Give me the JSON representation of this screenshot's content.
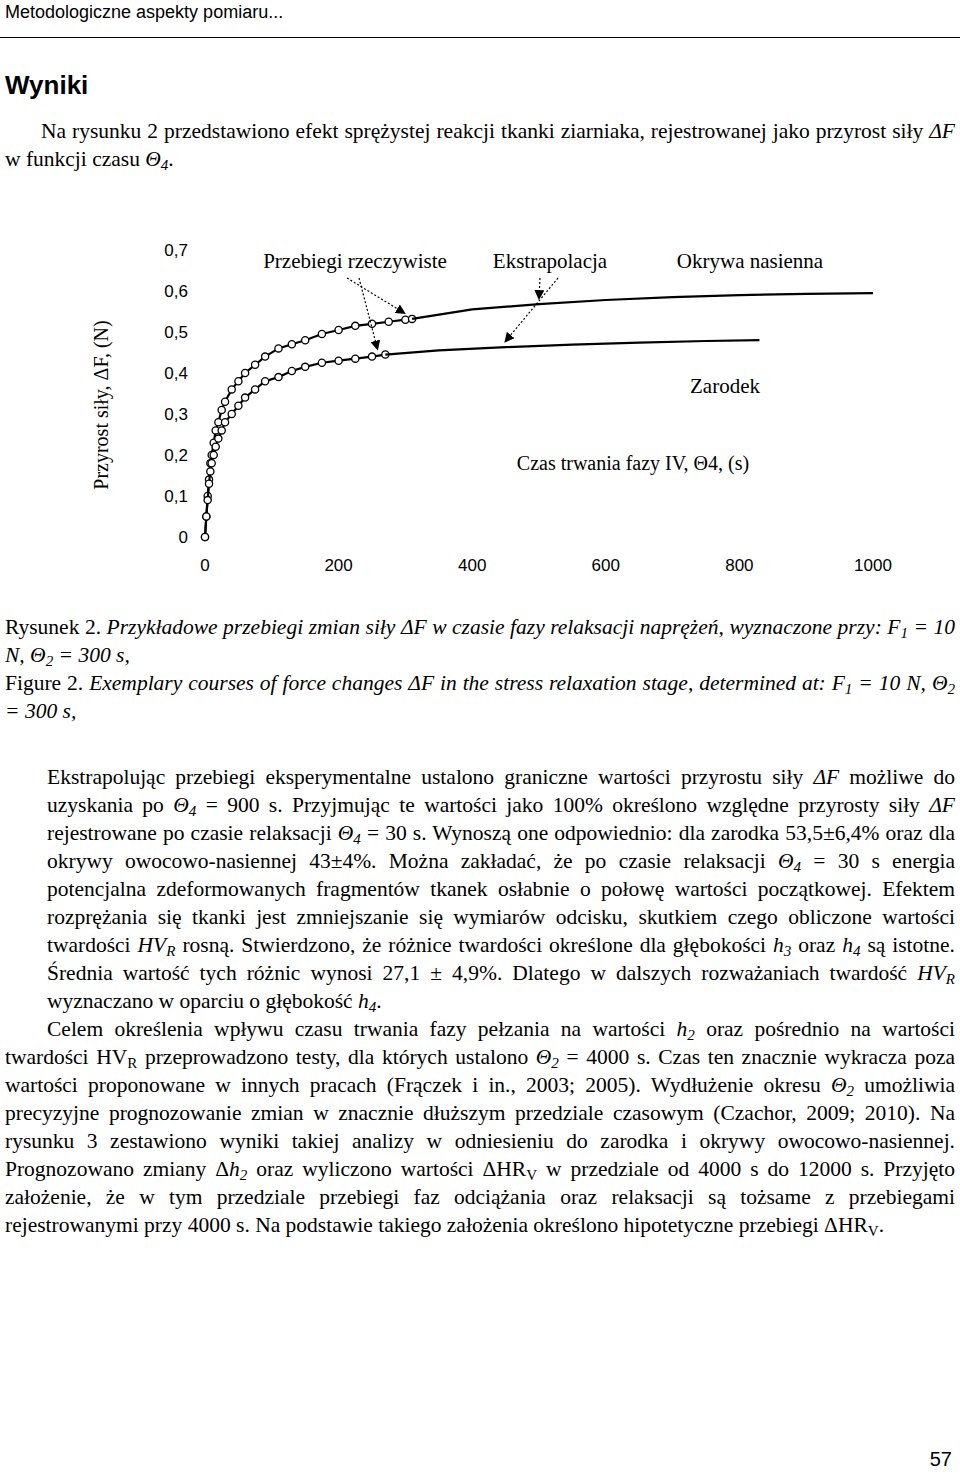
{
  "header": {
    "running_title": "Metodologiczne aspekty pomiaru..."
  },
  "section_title": "Wyniki",
  "intro": [
    "Na rysunku 2 przedstawiono efekt sprężystej reakcji tkanki ziarniaka, rejestrowanej jako przyrost siły ",
    {
      "i": "ΔF"
    },
    " w funkcji czasu ",
    {
      "i": "Θ"
    },
    {
      "is": "4"
    },
    "."
  ],
  "chart_data": {
    "type": "line",
    "x_label": "Czas trwania fazy IV, Θ4, (s)",
    "y_label": "Przyrost siły, ΔF, (N)",
    "annotations": [
      "Przebiegi rzeczywiste",
      "Ekstrapolacja"
    ],
    "xlim": [
      0,
      1000
    ],
    "xticks": [
      0,
      200,
      400,
      600,
      800,
      1000
    ],
    "ylim": [
      0,
      0.7
    ],
    "yticks": [
      0,
      {
        "value": 0.1,
        "label": "0,1"
      },
      {
        "value": 0.2,
        "label": "0,2"
      },
      {
        "value": 0.3,
        "label": "0,3"
      },
      {
        "value": 0.4,
        "label": "0,4"
      },
      {
        "value": 0.5,
        "label": "0,5"
      },
      {
        "value": 0.6,
        "label": "0,6"
      },
      {
        "value": 0.7,
        "label": "0,7"
      }
    ],
    "grid": false,
    "series": [
      {
        "name": "Okrywa nasienna",
        "color": "#000000",
        "marker": "circle",
        "line_style": "solid",
        "x": [
          0,
          2,
          4,
          6,
          8,
          10,
          13,
          16,
          20,
          25,
          30,
          40,
          50,
          60,
          75,
          90,
          110,
          130,
          150,
          175,
          200,
          225,
          250,
          275,
          300,
          310
        ],
        "values": [
          0,
          0.05,
          0.1,
          0.14,
          0.18,
          0.2,
          0.23,
          0.26,
          0.28,
          0.31,
          0.33,
          0.36,
          0.38,
          0.4,
          0.42,
          0.44,
          0.46,
          0.47,
          0.48,
          0.495,
          0.505,
          0.515,
          0.52,
          0.525,
          0.53,
          0.532
        ]
      },
      {
        "color": "#000000",
        "marker": "none",
        "line_style": "solid",
        "x": [
          310,
          400,
          500,
          600,
          700,
          800,
          900,
          1000
        ],
        "values": [
          0.532,
          0.555,
          0.568,
          0.578,
          0.585,
          0.59,
          0.593,
          0.595
        ]
      },
      {
        "name": "Zarodek",
        "color": "#000000",
        "marker": "circle",
        "line_style": "solid",
        "x": [
          0,
          2,
          4,
          6,
          8,
          10,
          13,
          16,
          20,
          25,
          30,
          40,
          50,
          60,
          75,
          90,
          110,
          130,
          150,
          175,
          200,
          225,
          250,
          270
        ],
        "values": [
          0,
          0.05,
          0.09,
          0.13,
          0.16,
          0.18,
          0.2,
          0.22,
          0.24,
          0.26,
          0.28,
          0.3,
          0.32,
          0.34,
          0.36,
          0.38,
          0.39,
          0.405,
          0.415,
          0.425,
          0.43,
          0.435,
          0.44,
          0.445
        ]
      },
      {
        "color": "#000000",
        "marker": "none",
        "line_style": "solid",
        "x": [
          270,
          350,
          450,
          550,
          650,
          750,
          830
        ],
        "values": [
          0.445,
          0.455,
          0.463,
          0.469,
          0.474,
          0.478,
          0.48
        ]
      }
    ]
  },
  "captions": [
    [
      "Rysunek 2. ",
      {
        "i": "Przykładowe przebiegi zmian siły ΔF w czasie fazy relaksacji naprężeń, wyznaczone przy: F"
      },
      {
        "is": "1"
      },
      {
        "i": " = 10 N, Θ"
      },
      {
        "is": "2"
      },
      {
        "i": " = 300 s,"
      }
    ],
    [
      "Figure 2. ",
      {
        "i": "Exemplary courses of force changes ΔF in the stress relaxation stage, determined at: F"
      },
      {
        "is": "1"
      },
      {
        "i": " = 10 N, Θ"
      },
      {
        "is": "2"
      },
      {
        "i": " = 300 s,"
      }
    ]
  ],
  "paragraphs": [
    [
      "Ekstrapolując przebiegi eksperymentalne ustalono graniczne wartości przyrostu siły ",
      {
        "i": "ΔF"
      },
      " możliwe do uzyskania po ",
      {
        "i": "Θ"
      },
      {
        "is": "4"
      },
      " = 900 s. Przyjmując te wartości jako 100% określono względne przyrosty siły ",
      {
        "i": "ΔF"
      },
      " rejestrowane po czasie relaksacji ",
      {
        "i": "Θ"
      },
      {
        "is": "4"
      },
      " = 30 s. Wynoszą one odpowiednio: dla zarodka 53,5±6,4% oraz dla okrywy owocowo-nasiennej 43±4%. Można zakładać, że po czasie relaksacji ",
      {
        "i": "Θ"
      },
      {
        "is": "4"
      },
      " = 30 s energia potencjalna zdeformowanych fragmentów tkanek osłabnie o połowę wartości początkowej. Efektem rozprężania się tkanki jest zmniejszanie się wymiarów odcisku, skutkiem czego obliczone wartości twardości ",
      {
        "i": "HV"
      },
      {
        "is": "R"
      },
      " rosną. Stwierdzono, że różnice twardości określone dla głębokości ",
      {
        "i": "h"
      },
      {
        "is": "3"
      },
      " oraz ",
      {
        "i": "h"
      },
      {
        "is": "4"
      },
      " są istotne. Średnia wartość tych różnic wynosi 27,1 ± 4,9%. Dlatego w dalszych rozważaniach twardość ",
      {
        "i": "HV"
      },
      {
        "is": "R"
      },
      " wyznaczano w oparciu o głębokość ",
      {
        "i": "h"
      },
      {
        "is": "4"
      },
      "."
    ],
    [
      "Celem określenia wpływu czasu trwania fazy pełzania na wartości ",
      {
        "i": "h"
      },
      {
        "is": "2"
      },
      " oraz pośrednio na wartości twardości HV",
      {
        "s": "R"
      },
      " przeprowadzono testy, dla których ustalono ",
      {
        "i": "Θ"
      },
      {
        "is": "2"
      },
      " = 4000 s. Czas ten znacznie wykracza poza wartości proponowane w innych pracach (Frączek i in., 2003; 2005). Wydłużenie okresu ",
      {
        "i": "Θ"
      },
      {
        "is": "2"
      },
      " umożliwia precyzyjne prognozowanie zmian w znacznie dłuższym przedziale czasowym (Czachor, 2009; 2010). Na rysunku 3 zestawiono wyniki takiej analizy w odniesieniu do zarodka i okrywy owocowo-nasiennej. Prognozowano zmiany Δ",
      {
        "i": "h"
      },
      {
        "is": "2"
      },
      " oraz wyliczono wartości ΔHR",
      {
        "s": "V"
      },
      " w przedziale od 4000 s do 12000 s. Przyjęto założenie, że w tym przedziale przebiegi faz odciążania oraz relaksacji są tożsame z przebiegami rejestrowanymi przy 4000 s. Na podstawie takiego założenia określono hipotetyczne przebiegi ΔHR",
      {
        "s": "V"
      },
      "."
    ]
  ],
  "page_number": "57"
}
